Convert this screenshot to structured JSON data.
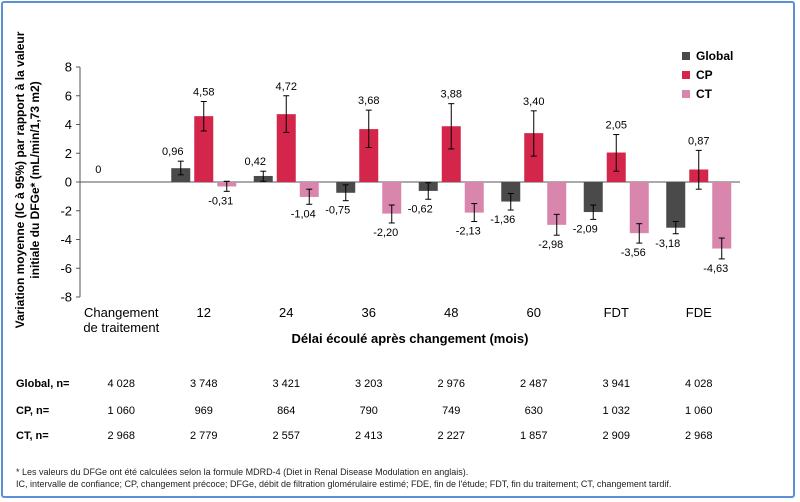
{
  "chart_data": {
    "type": "bar",
    "categories": [
      "Changement\nde traitement",
      "12",
      "24",
      "36",
      "48",
      "60",
      "FDT",
      "FDE"
    ],
    "series": [
      {
        "name": "Global",
        "color": "#4a4a4a",
        "values": [
          0,
          0.96,
          0.42,
          -0.75,
          -0.62,
          -1.36,
          -2.09,
          -3.18
        ],
        "labels": [
          "0",
          "0,96",
          "0,42",
          "-0,75",
          "-0,62",
          "-1,36",
          "-2,09",
          "-3,18"
        ],
        "ci_low": [
          null,
          0.5,
          0.05,
          -1.3,
          -1.2,
          -1.95,
          -2.6,
          -3.6
        ],
        "ci_high": [
          null,
          1.45,
          0.75,
          -0.2,
          -0.05,
          -0.8,
          -1.6,
          -2.75
        ]
      },
      {
        "name": "CP",
        "color": "#d4264b",
        "values": [
          null,
          4.58,
          4.72,
          3.68,
          3.88,
          3.4,
          2.05,
          0.87
        ],
        "labels": [
          null,
          "4,58",
          "4,72",
          "3,68",
          "3,88",
          "3,40",
          "2,05",
          "0,87"
        ],
        "ci_low": [
          null,
          3.55,
          3.45,
          2.4,
          2.3,
          1.8,
          0.75,
          -0.5
        ],
        "ci_high": [
          null,
          5.6,
          6.0,
          5.0,
          5.45,
          4.95,
          3.3,
          2.2
        ]
      },
      {
        "name": "CT",
        "color": "#d986ad",
        "values": [
          null,
          -0.31,
          -1.04,
          -2.2,
          -2.13,
          -2.98,
          -3.56,
          -4.63
        ],
        "labels": [
          null,
          "-0,31",
          "-1,04",
          "-2,20",
          "-2,13",
          "-2,98",
          "-3,56",
          "-4,63"
        ],
        "ci_low": [
          null,
          -0.65,
          -1.55,
          -2.85,
          -2.75,
          -3.7,
          -4.25,
          -5.35
        ],
        "ci_high": [
          null,
          0.05,
          -0.5,
          -1.6,
          -1.5,
          -2.25,
          -2.9,
          -3.9
        ]
      }
    ],
    "ylim": [
      -8,
      8
    ],
    "yticks": [
      -8,
      -6,
      -4,
      -2,
      0,
      2,
      4,
      6,
      8
    ],
    "ylabel_line1": "Variation moyenne (IC à 95%) par rapport à la valeur",
    "ylabel_line2": "initiale du DFGe* (mL/min/1,73 m2)",
    "xlabel": "Délai écoulé après changement (mois)",
    "legend_position": "top-right"
  },
  "n_table": {
    "rows": [
      {
        "label": "Global, n=",
        "values": [
          "4 028",
          "3 748",
          "3 421",
          "3 203",
          "2 976",
          "2 487",
          "3 941",
          "4 028"
        ]
      },
      {
        "label": "CP, n=",
        "values": [
          "1 060",
          "969",
          "864",
          "790",
          "749",
          "630",
          "1 032",
          "1 060"
        ]
      },
      {
        "label": "CT, n=",
        "values": [
          "2 968",
          "2 779",
          "2 557",
          "2 413",
          "2 227",
          "1 857",
          "2 909",
          "2 968"
        ]
      }
    ]
  },
  "footnote": {
    "line1": "* Les valeurs du DFGe ont été calculées selon la formule MDRD-4 (Diet in Renal Disease Modulation en anglais).",
    "line2": "IC, intervalle de confiance; CP, changement précoce; DFGe, débit de filtration glomérulaire estimé; FDE, fin de l'étude; FDT, fin du traitement; CT, changement tardif."
  }
}
